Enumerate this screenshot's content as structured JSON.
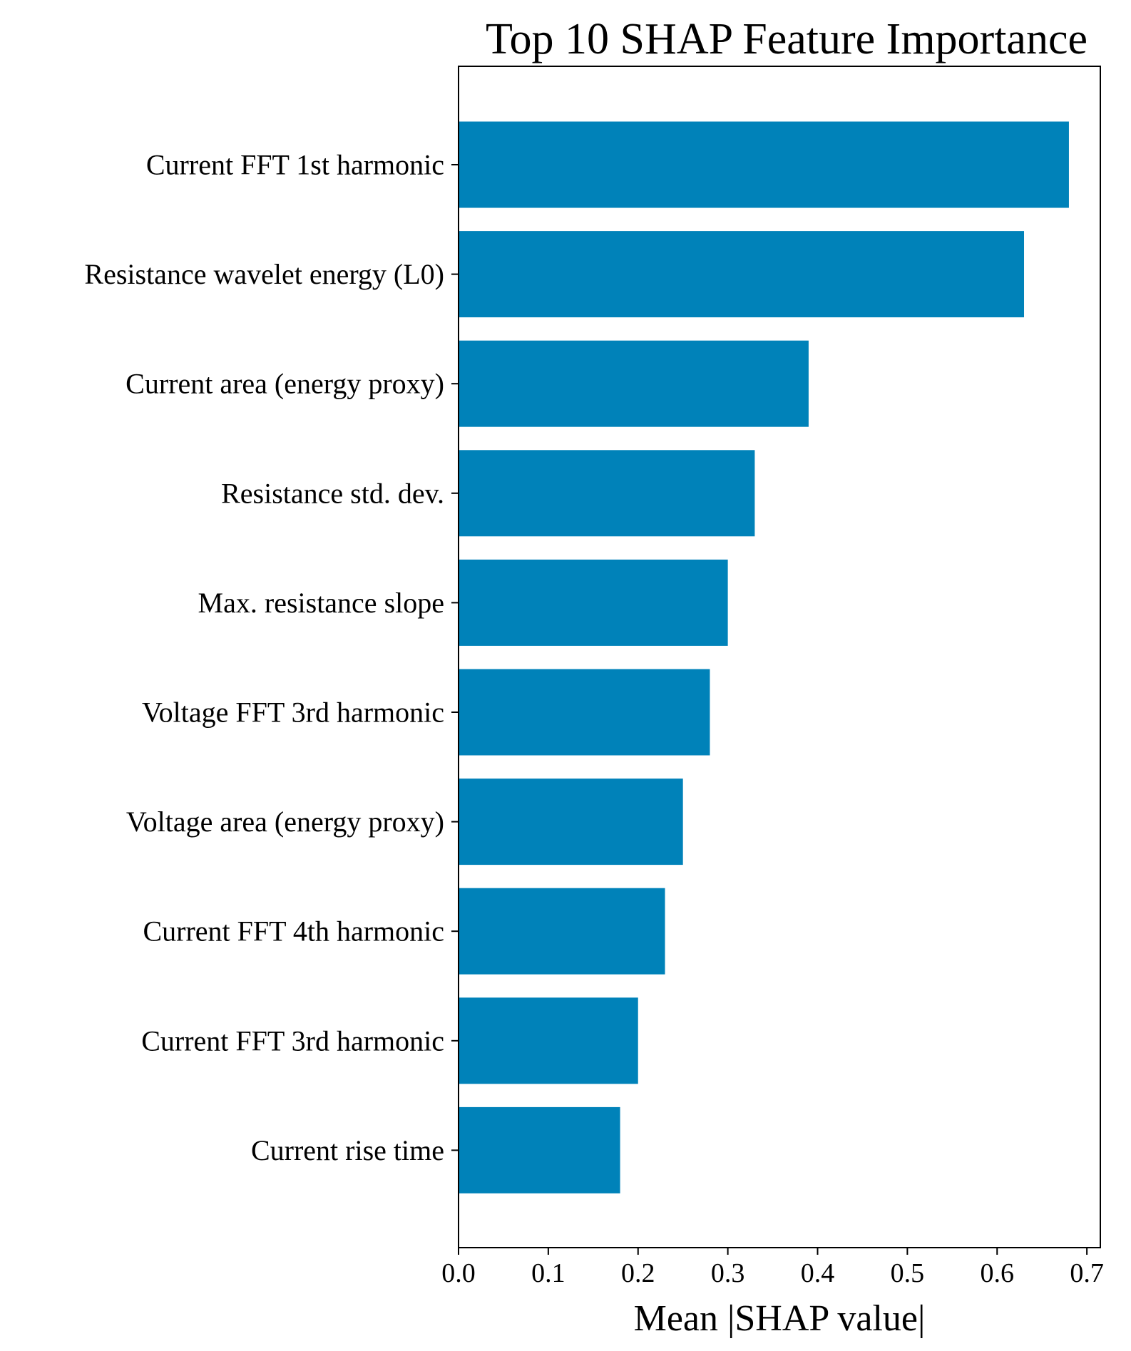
{
  "chart_data": {
    "type": "bar",
    "orientation": "horizontal",
    "title": "Top 10 SHAP Feature Importance",
    "xlabel": "Mean |SHAP value|",
    "ylabel": "",
    "xlim": [
      0.0,
      0.715
    ],
    "xticks": [
      0.0,
      0.1,
      0.2,
      0.3,
      0.4,
      0.5,
      0.6,
      0.7
    ],
    "xtick_labels": [
      "0.0",
      "0.1",
      "0.2",
      "0.3",
      "0.4",
      "0.5",
      "0.6",
      "0.7"
    ],
    "grid": false,
    "legend": "none",
    "bar_color": "#0082b9",
    "categories": [
      "Current FFT 1st harmonic",
      "Resistance wavelet energy (L0)",
      "Current area (energy proxy)",
      "Resistance std. dev.",
      "Max. resistance slope",
      "Voltage FFT 3rd harmonic",
      "Voltage area (energy proxy)",
      "Current FFT 4th harmonic",
      "Current FFT 3rd harmonic",
      "Current rise time"
    ],
    "values": [
      0.68,
      0.63,
      0.39,
      0.33,
      0.3,
      0.28,
      0.25,
      0.23,
      0.2,
      0.18
    ]
  }
}
